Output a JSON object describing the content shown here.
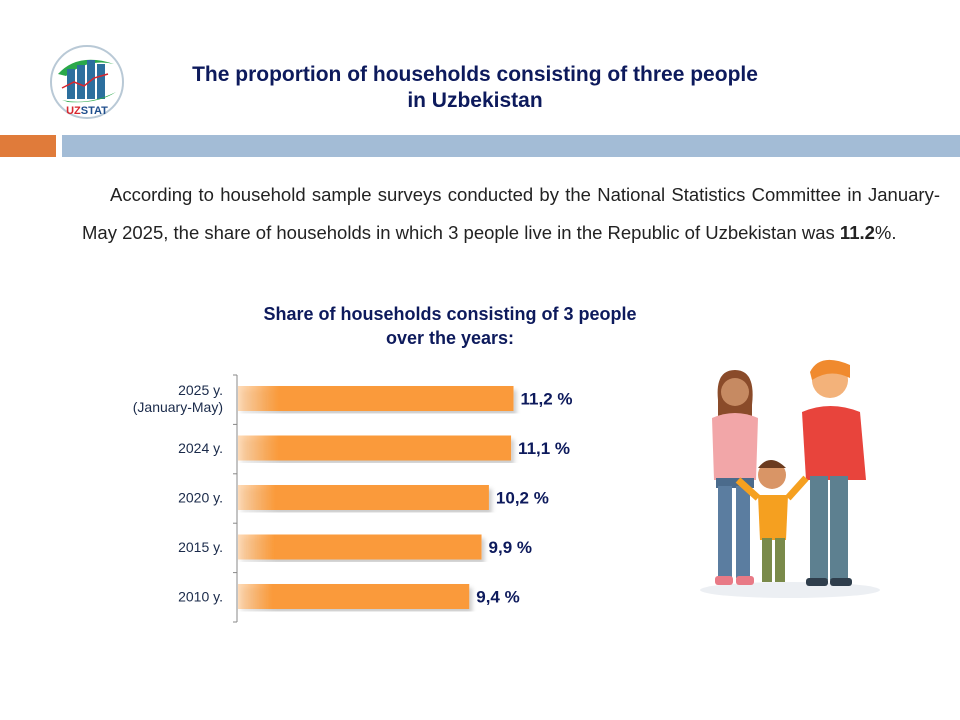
{
  "logo": {
    "text": "UZSTAT"
  },
  "title": {
    "line1": "The proportion of households consisting of three people",
    "line2": "in Uzbekistan"
  },
  "paragraph": {
    "before": "According to household sample surveys conducted by the National Statistics Committee in January-May 2025, the share of households in which 3 people live in the Republic of Uzbekistan was ",
    "highlight": "11.2",
    "after": "%."
  },
  "colors": {
    "bar": "#fa9a3a",
    "title": "#0d1a5c",
    "accent_orange": "#e07b3a",
    "accent_blue": "#a3bcd6"
  },
  "chart_data": {
    "type": "bar",
    "orientation": "horizontal",
    "title": "Share of households consisting of 3 people over the years:",
    "title_line1": "Share of households consisting of 3 people",
    "title_line2": "over the years:",
    "categories": [
      [
        "2025 y.",
        "(January-May)"
      ],
      [
        "2024 y."
      ],
      [
        "2020 y."
      ],
      [
        "2015 y."
      ],
      [
        "2010 y."
      ]
    ],
    "values": [
      11.2,
      11.1,
      10.2,
      9.9,
      9.4
    ],
    "labels": [
      "11,2 %",
      "11,1 %",
      "10,2 %",
      "9,9 %",
      "9,4 %"
    ],
    "xlim": [
      0,
      12
    ],
    "grid": false
  }
}
